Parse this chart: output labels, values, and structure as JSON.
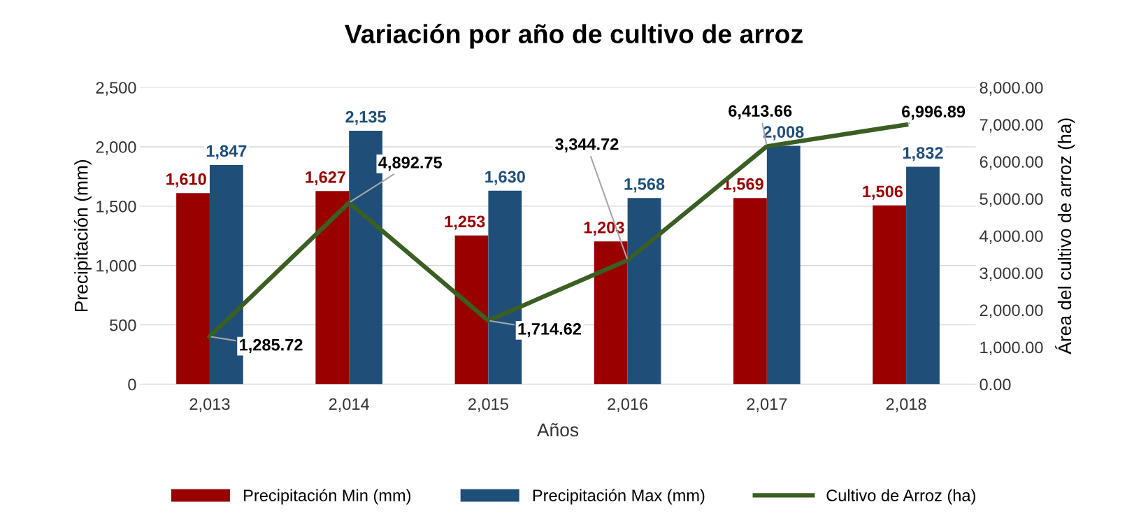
{
  "chart_data": {
    "type": "bar",
    "title": "Variación por año de cultivo de arroz",
    "xlabel": "Años",
    "ylabel": "Precipitación (mm)",
    "y2label": "Área del cultivo de arroz (ha)",
    "categories": [
      "2,013",
      "2,014",
      "2,015",
      "2,016",
      "2,017",
      "2,018"
    ],
    "series": [
      {
        "name": "Precipitación Min (mm)",
        "color": "#990000",
        "values": [
          1610,
          1627,
          1253,
          1203,
          1569,
          1506
        ],
        "value_labels": [
          "1,610",
          "1,627",
          "1,253",
          "1,203",
          "1,569",
          "1,506"
        ]
      },
      {
        "name": "Precipitación Max (mm)",
        "color": "#1f4e79",
        "values": [
          1847,
          2135,
          1630,
          1568,
          2008,
          1832
        ],
        "value_labels": [
          "1,847",
          "2,135",
          "1,630",
          "1,568",
          "2,008",
          "1,832"
        ]
      },
      {
        "name": "Cultivo de Arroz (ha)",
        "type": "line",
        "axis": "y2",
        "color": "#3b5e23",
        "values": [
          1285.72,
          4892.75,
          1714.62,
          3344.72,
          6413.66,
          6996.89
        ],
        "value_labels": [
          "1,285.72",
          "4,892.75",
          "1,714.62",
          "3,344.72",
          "6,413.66",
          "6,996.89"
        ]
      }
    ],
    "ylim": [
      0,
      2500
    ],
    "yticks": [
      0,
      500,
      {
        "value": 1000,
        "label": "1,000"
      },
      {
        "value": 1500,
        "label": "1,500"
      },
      {
        "value": 2000,
        "label": "2,000"
      },
      {
        "value": 2500,
        "label": "2,500"
      }
    ],
    "y2lim": [
      0,
      8000
    ],
    "y2ticks": [
      {
        "value": 0,
        "label": "0.00"
      },
      {
        "value": 1000,
        "label": "1,000.00"
      },
      {
        "value": 2000,
        "label": "2,000.00"
      },
      {
        "value": 3000,
        "label": "3,000.00"
      },
      {
        "value": 4000,
        "label": "4,000.00"
      },
      {
        "value": 5000,
        "label": "5,000.00"
      },
      {
        "value": 6000,
        "label": "6,000.00"
      },
      {
        "value": 7000,
        "label": "7,000.00"
      },
      {
        "value": 8000,
        "label": "8,000.00"
      }
    ],
    "grid": "y",
    "legend": "bottom",
    "marker": "none",
    "line_style": "solid"
  }
}
